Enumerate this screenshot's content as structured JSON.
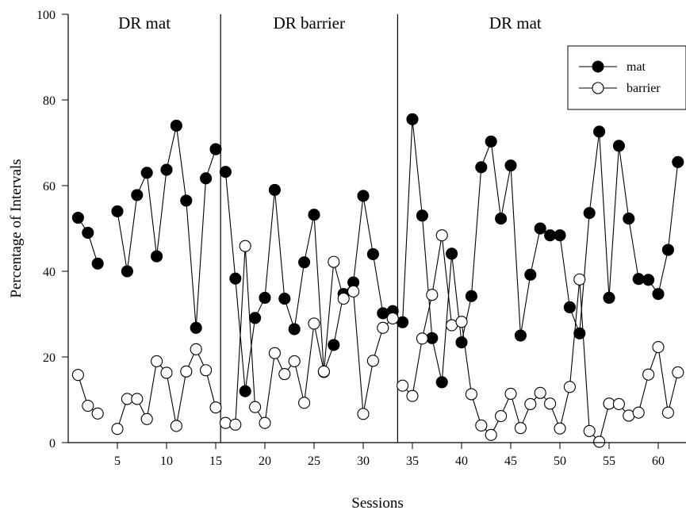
{
  "chart_data": {
    "type": "line",
    "xlabel": "Sessions",
    "ylabel": "Percentage of Intervals",
    "xlim": [
      0,
      62
    ],
    "ylim": [
      0,
      100
    ],
    "xticks": [
      5,
      10,
      15,
      20,
      25,
      30,
      35,
      40,
      45,
      50,
      55,
      60
    ],
    "yticks": [
      0,
      20,
      40,
      60,
      80,
      100
    ],
    "legend": {
      "position": "top-right",
      "entries": [
        "mat",
        "barrier"
      ]
    },
    "phases": [
      {
        "label": "DR mat",
        "start": 0,
        "end": 15.5
      },
      {
        "label": "DR barrier",
        "start": 15.5,
        "end": 33.5
      },
      {
        "label": "DR mat",
        "start": 33.5,
        "end": 62
      }
    ],
    "phase_lines": [
      15.5,
      33.5
    ],
    "series": [
      {
        "name": "mat",
        "marker": "filled-circle",
        "color": "#000000",
        "x": [
          1,
          2,
          3,
          4,
          5,
          6,
          7,
          8,
          9,
          10,
          11,
          12,
          13,
          14,
          15,
          16,
          17,
          18,
          19,
          20,
          21,
          22,
          23,
          24,
          25,
          26,
          27,
          28,
          29,
          30,
          31,
          32,
          33,
          34,
          35,
          36,
          37,
          38,
          39,
          40,
          41,
          42,
          43,
          44,
          45,
          46,
          47,
          48,
          49,
          50,
          51,
          52,
          53,
          54,
          55,
          56,
          57,
          58,
          59,
          60,
          61,
          62
        ],
        "values": [
          52.5,
          49,
          41.8,
          null,
          54,
          40,
          57.8,
          63,
          43.5,
          63.7,
          74,
          56.5,
          26.8,
          61.7,
          68.5,
          63.2,
          38.3,
          12,
          29.1,
          33.8,
          59,
          33.6,
          26.5,
          42.1,
          53.2,
          16.5,
          22.8,
          34.7,
          37.4,
          57.6,
          44,
          30.2,
          30.7,
          28.1,
          75.5,
          53,
          24.4,
          14.1,
          44.1,
          23.4,
          34.2,
          64.3,
          70.3,
          52.3,
          64.7,
          25,
          39.2,
          50,
          48.4,
          48.4,
          31.6,
          25.5,
          53.6,
          72.6,
          33.8,
          69.3,
          52.3,
          38.2,
          38,
          34.7,
          45,
          65.5
        ],
        "segments": [
          [
            0,
            2
          ],
          [
            4,
            14
          ],
          [
            15,
            32
          ],
          [
            33,
            61
          ]
        ]
      },
      {
        "name": "barrier",
        "marker": "open-circle",
        "color": "#000000",
        "x": [
          1,
          2,
          3,
          4,
          5,
          6,
          7,
          8,
          9,
          10,
          11,
          12,
          13,
          14,
          15,
          16,
          17,
          18,
          19,
          20,
          21,
          22,
          23,
          24,
          25,
          26,
          27,
          28,
          29,
          30,
          31,
          32,
          33,
          34,
          35,
          36,
          37,
          38,
          39,
          40,
          41,
          42,
          43,
          44,
          45,
          46,
          47,
          48,
          49,
          50,
          51,
          52,
          53,
          54,
          55,
          56,
          57,
          58,
          59,
          60,
          61,
          62
        ],
        "values": [
          15.8,
          8.6,
          6.8,
          null,
          3.2,
          10.2,
          10.2,
          5.5,
          19,
          16.3,
          3.9,
          16.6,
          21.8,
          16.9,
          8.2,
          4.6,
          4.2,
          45.9,
          8.3,
          4.6,
          20.9,
          16,
          19,
          9.3,
          27.8,
          16.6,
          42.2,
          33.6,
          35.3,
          6.7,
          19.1,
          26.8,
          29,
          13.3,
          10.9,
          24.3,
          34.5,
          48.4,
          27.4,
          28.2,
          11.3,
          4,
          1.8,
          6.2,
          11.4,
          3.4,
          9,
          11.6,
          9.1,
          3.3,
          13,
          38.1,
          2.7,
          0.2,
          9.1,
          9,
          6.3,
          7,
          15.9,
          22.3,
          7,
          16.4
        ],
        "segments": [
          [
            0,
            2
          ],
          [
            4,
            14
          ],
          [
            15,
            32
          ],
          [
            33,
            61
          ]
        ]
      }
    ]
  }
}
